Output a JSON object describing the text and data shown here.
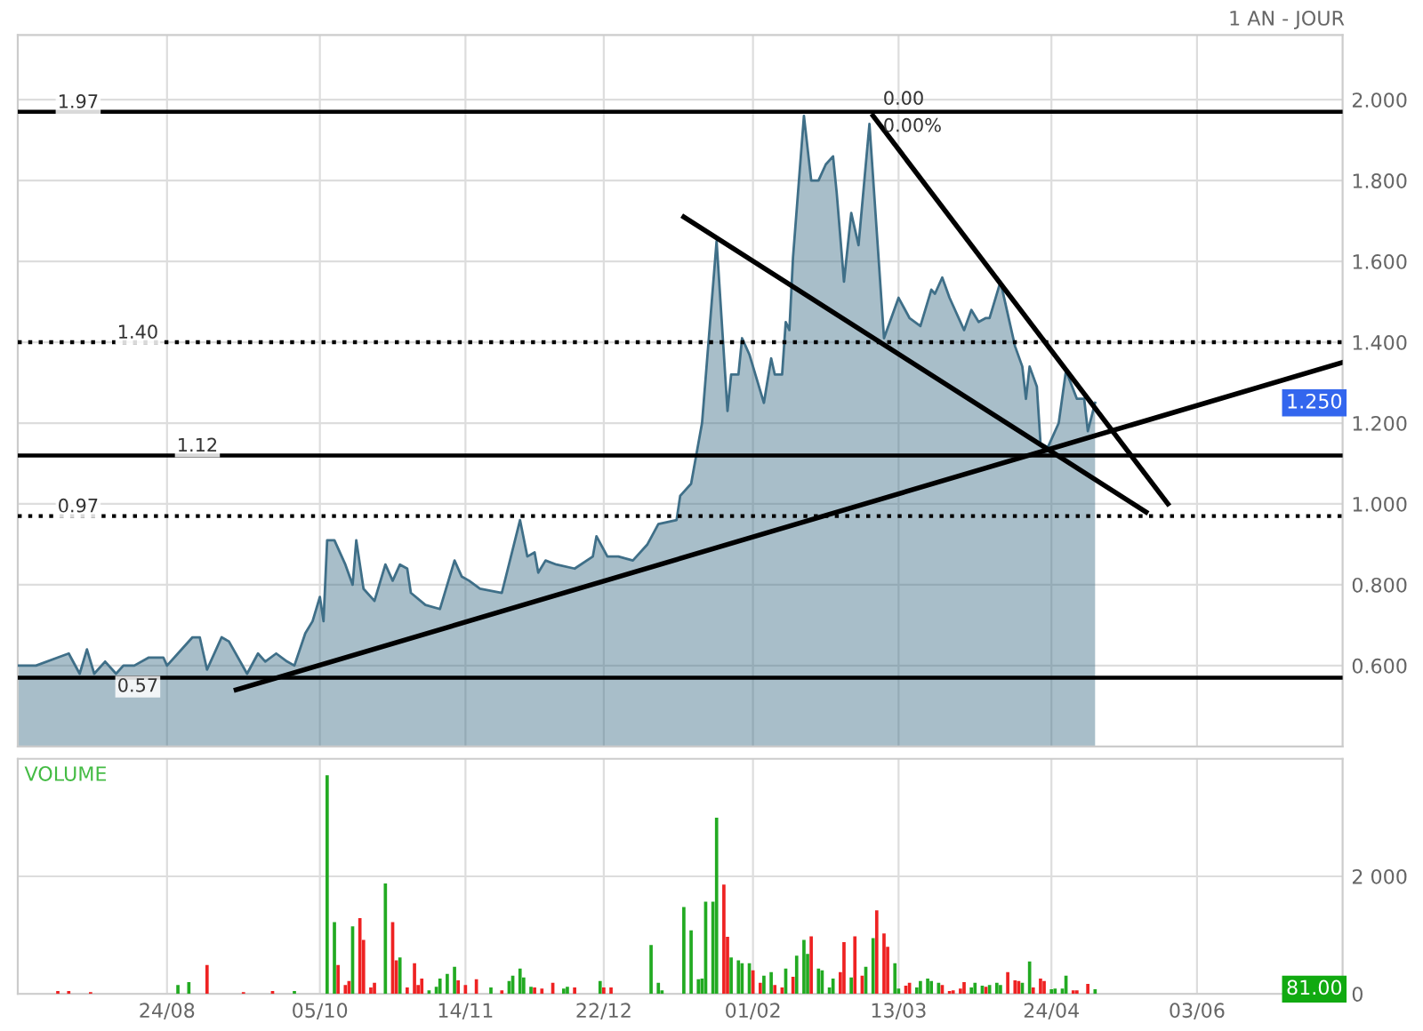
{
  "chart_data": [
    {
      "type": "area",
      "subtitle": "1 AN - JOUR",
      "series": [
        {
          "type": "area",
          "color": "#3f6f88",
          "x": [
            "2001-07-14",
            "2001-07-19",
            "2001-07-25",
            "2001-07-28",
            "2001-07-31",
            "2001-08-02",
            "2001-08-04",
            "2001-08-07",
            "2001-08-10",
            "2001-08-12",
            "2001-08-15",
            "2001-08-19",
            "2001-08-23",
            "2001-08-24",
            "2001-08-27",
            "2001-08-31",
            "2001-09-02",
            "2001-09-04",
            "2001-09-08",
            "2001-09-10",
            "2001-09-15",
            "2001-09-18",
            "2001-09-20",
            "2001-09-23",
            "2001-09-26",
            "2001-09-28",
            "2001-10-01",
            "2001-10-03",
            "2001-10-05",
            "2001-10-06",
            "2001-10-07",
            "2001-10-09",
            "2001-10-12",
            "2001-10-14",
            "2001-10-15",
            "2001-10-17",
            "2001-10-20",
            "2001-10-23",
            "2001-10-25",
            "2001-10-27",
            "2001-10-29",
            "2001-10-30",
            "2001-11-03",
            "2001-11-07",
            "2001-11-11",
            "2001-11-13",
            "2001-11-15",
            "2001-11-18",
            "2001-11-24",
            "2001-11-29",
            "2001-12-01",
            "2001-12-03",
            "2001-12-04",
            "2001-12-06",
            "2001-12-09",
            "2001-12-14",
            "2001-12-19",
            "2001-12-20",
            "2001-12-23",
            "2001-12-26",
            "2001-12-30",
            "2002-01-03",
            "2002-01-06",
            "2002-01-11",
            "2002-01-12",
            "2002-01-15",
            "2002-01-18",
            "2002-01-22",
            "2002-01-25",
            "2002-01-26",
            "2002-01-28",
            "2002-01-29",
            "2002-01-31",
            "2002-02-04",
            "2002-02-06",
            "2002-02-07",
            "2002-02-09",
            "2002-02-10",
            "2002-02-11",
            "2002-02-12",
            "2002-02-15",
            "2002-02-17",
            "2002-02-19",
            "2002-02-21",
            "2002-02-23",
            "2002-02-24",
            "2002-02-26",
            "2002-02-28",
            "2002-03-02",
            "2002-03-05",
            "2002-03-09",
            "2002-03-13",
            "2002-03-16",
            "2002-03-19",
            "2002-03-22",
            "2002-03-23",
            "2002-03-25",
            "2002-03-27",
            "2002-03-31",
            "2002-04-02",
            "2002-04-04",
            "2002-04-06",
            "2002-04-07",
            "2002-04-10",
            "2002-04-14",
            "2002-04-16",
            "2002-04-17",
            "2002-04-18",
            "2002-04-20",
            "2002-04-21",
            "2002-04-23",
            "2002-04-26",
            "2002-04-28",
            "2002-05-01",
            "2002-05-03",
            "2002-05-04",
            "2002-05-06"
          ],
          "values": [
            0.6,
            0.6,
            0.62,
            0.63,
            0.58,
            0.64,
            0.58,
            0.61,
            0.58,
            0.6,
            0.6,
            0.62,
            0.62,
            0.6,
            0.63,
            0.67,
            0.67,
            0.59,
            0.67,
            0.66,
            0.58,
            0.63,
            0.61,
            0.63,
            0.61,
            0.6,
            0.68,
            0.71,
            0.77,
            0.71,
            0.91,
            0.91,
            0.85,
            0.8,
            0.91,
            0.79,
            0.76,
            0.85,
            0.81,
            0.85,
            0.84,
            0.78,
            0.75,
            0.74,
            0.86,
            0.82,
            0.81,
            0.79,
            0.78,
            0.96,
            0.87,
            0.88,
            0.83,
            0.86,
            0.85,
            0.84,
            0.87,
            0.92,
            0.87,
            0.87,
            0.86,
            0.9,
            0.95,
            0.96,
            1.02,
            1.05,
            1.2,
            1.65,
            1.23,
            1.32,
            1.32,
            1.41,
            1.37,
            1.25,
            1.36,
            1.32,
            1.32,
            1.45,
            1.43,
            1.61,
            1.96,
            1.8,
            1.8,
            1.84,
            1.86,
            1.77,
            1.55,
            1.72,
            1.64,
            1.94,
            1.41,
            1.51,
            1.46,
            1.44,
            1.53,
            1.52,
            1.56,
            1.51,
            1.43,
            1.48,
            1.45,
            1.46,
            1.46,
            1.55,
            1.39,
            1.34,
            1.26,
            1.34,
            1.29,
            1.15,
            1.14,
            1.2,
            1.33,
            1.26,
            1.26,
            1.18,
            1.25
          ]
        },
        {
          "type": "line",
          "color": "#000000",
          "x": [
            "2001-09-12",
            "2002-07-13"
          ],
          "values": [
            0.54,
            1.35
          ]
        },
        {
          "type": "line",
          "color": "#000000",
          "x": [
            "2002-01-13",
            "2002-05-20"
          ],
          "values": [
            1.71,
            0.98
          ]
        },
        {
          "type": "line",
          "color": "#000000",
          "x": [
            "2002-03-06",
            "2002-05-26"
          ],
          "values": [
            1.96,
            1.0
          ]
        }
      ],
      "xlim": [
        "2001-07-14",
        "2002-07-13"
      ],
      "xticks": [
        {
          "value": "2001-08-24",
          "label": null
        },
        {
          "value": "2001-10-05",
          "label": null
        },
        {
          "value": "2001-11-14",
          "label": null
        },
        {
          "value": "2001-12-22",
          "label": null
        },
        {
          "value": "2002-02-01",
          "label": null
        },
        {
          "value": "2002-03-13",
          "label": null
        },
        {
          "value": "2002-04-24",
          "label": null
        },
        {
          "value": "2002-06-03",
          "label": null
        }
      ],
      "ylim": [
        0.4,
        2.16
      ],
      "yticks": [
        {
          "value": 0.6,
          "label": "0.600"
        },
        {
          "value": 0.8,
          "label": "0.800"
        },
        {
          "value": 1.0,
          "label": "1.000"
        },
        {
          "value": 1.2,
          "label": "1.200"
        },
        {
          "value": 1.4,
          "label": "1.400"
        },
        {
          "value": 1.6,
          "label": "1.600"
        },
        {
          "value": 1.8,
          "label": "1.800"
        },
        {
          "value": 2.0,
          "label": "2.000"
        }
      ],
      "tick_labels": "y",
      "grid": true,
      "ref_lines": [
        {
          "axis": "y",
          "value": 1.97,
          "label": "1.97",
          "line_style": "solid"
        },
        {
          "axis": "y",
          "value": 1.4,
          "label": "1.40",
          "line_style": "dotted"
        },
        {
          "axis": "y",
          "value": 1.12,
          "label": "1.12",
          "line_style": "solid"
        },
        {
          "axis": "y",
          "value": 0.97,
          "label": "0.97",
          "line_style": "dotted"
        },
        {
          "axis": "y",
          "value": 0.57,
          "label": "0.57",
          "line_style": "solid"
        }
      ],
      "annotations": [
        {
          "text": "0.00",
          "x": "2002-03-06",
          "y": 1.96
        },
        {
          "text": "0.00%",
          "x": "2002-03-06",
          "y": 1.96
        },
        "1.250"
      ]
    },
    {
      "type": "bar",
      "title": "VOLUME",
      "series": [
        {
          "color": "#22aa22",
          "x": [
            "2001-08-27",
            "2001-08-30",
            "2001-09-28",
            "2001-10-07",
            "2001-10-09",
            "2001-10-14",
            "2001-10-23",
            "2001-10-27",
            "2001-11-04",
            "2001-11-06",
            "2001-11-07",
            "2001-11-09",
            "2001-11-11",
            "2001-11-21",
            "2001-11-26",
            "2001-11-27",
            "2001-11-29",
            "2001-11-30",
            "2001-12-02",
            "2001-12-11",
            "2001-12-12",
            "2001-12-21",
            "2002-01-04",
            "2002-01-06",
            "2002-01-07",
            "2002-01-13",
            "2002-01-15",
            "2002-01-17",
            "2002-01-18",
            "2002-01-19",
            "2002-01-21",
            "2002-01-22",
            "2002-01-26",
            "2002-01-28",
            "2002-01-29",
            "2002-01-31",
            "2002-02-04",
            "2002-02-06",
            "2002-02-10",
            "2002-02-13",
            "2002-02-15",
            "2002-02-16",
            "2002-02-19",
            "2002-02-20",
            "2002-02-22",
            "2002-02-23",
            "2002-02-28",
            "2002-03-04",
            "2002-03-06",
            "2002-03-12",
            "2002-03-13",
            "2002-03-18",
            "2002-03-19",
            "2002-03-21",
            "2002-03-22",
            "2002-03-24",
            "2002-04-02",
            "2002-04-03",
            "2002-04-05",
            "2002-04-07",
            "2002-04-09",
            "2002-04-10",
            "2002-04-16",
            "2002-04-18",
            "2002-04-24",
            "2002-04-25",
            "2002-04-27",
            "2002-04-28",
            "2002-05-06"
          ],
          "values": [
            150,
            200,
            50,
            3720,
            1220,
            1150,
            1880,
            620,
            60,
            120,
            260,
            340,
            460,
            110,
            220,
            310,
            430,
            280,
            120,
            90,
            120,
            220,
            830,
            190,
            60,
            1480,
            1080,
            250,
            260,
            1570,
            1570,
            3000,
            620,
            570,
            520,
            520,
            310,
            370,
            430,
            650,
            920,
            680,
            430,
            400,
            110,
            260,
            280,
            460,
            950,
            520,
            90,
            110,
            220,
            260,
            220,
            190,
            110,
            190,
            140,
            150,
            190,
            150,
            190,
            550,
            80,
            90,
            90,
            310,
            81
          ]
        },
        {
          "color": "#ee2222",
          "x": [
            "2001-07-25",
            "2001-07-28",
            "2001-08-03",
            "2001-09-04",
            "2001-09-14",
            "2001-09-22",
            "2001-10-10",
            "2001-10-12",
            "2001-10-13",
            "2001-10-16",
            "2001-10-17",
            "2001-10-19",
            "2001-10-20",
            "2001-10-25",
            "2001-10-26",
            "2001-10-29",
            "2001-10-31",
            "2001-11-01",
            "2001-11-02",
            "2001-11-12",
            "2001-11-14",
            "2001-11-17",
            "2001-11-24",
            "2001-12-03",
            "2001-12-05",
            "2001-12-08",
            "2001-12-14",
            "2001-12-22",
            "2001-12-24",
            "2002-01-24",
            "2002-01-25",
            "2002-02-01",
            "2002-02-03",
            "2002-02-07",
            "2002-02-09",
            "2002-02-12",
            "2002-02-17",
            "2002-02-25",
            "2002-02-26",
            "2002-03-01",
            "2002-03-03",
            "2002-03-07",
            "2002-03-09",
            "2002-03-10",
            "2002-03-15",
            "2002-03-16",
            "2002-03-25",
            "2002-03-27",
            "2002-03-28",
            "2002-03-30",
            "2002-03-31",
            "2002-04-06",
            "2002-04-12",
            "2002-04-14",
            "2002-04-15",
            "2002-04-19",
            "2002-04-21",
            "2002-04-22",
            "2002-04-30",
            "2002-05-01",
            "2002-05-04"
          ],
          "values": [
            50,
            50,
            30,
            490,
            30,
            50,
            490,
            150,
            220,
            1290,
            920,
            110,
            190,
            1220,
            570,
            110,
            520,
            150,
            260,
            230,
            150,
            250,
            60,
            110,
            90,
            190,
            110,
            110,
            110,
            1860,
            970,
            400,
            190,
            150,
            110,
            290,
            980,
            370,
            880,
            980,
            310,
            1420,
            1030,
            800,
            140,
            190,
            150,
            50,
            60,
            90,
            200,
            120,
            370,
            230,
            220,
            110,
            260,
            220,
            60,
            60,
            170
          ]
        }
      ],
      "xlim": [
        "2001-07-14",
        "2002-07-13"
      ],
      "xticks": [
        {
          "value": "2001-08-24",
          "label": "24/08"
        },
        {
          "value": "2001-10-05",
          "label": "05/10"
        },
        {
          "value": "2001-11-14",
          "label": "14/11"
        },
        {
          "value": "2001-12-22",
          "label": "22/12"
        },
        {
          "value": "2002-02-01",
          "label": "01/02"
        },
        {
          "value": "2002-03-13",
          "label": "13/03"
        },
        {
          "value": "2002-04-24",
          "label": "24/04"
        },
        {
          "value": "2002-06-03",
          "label": "03/06"
        }
      ],
      "ylim": [
        0,
        4000
      ],
      "yticks": [
        {
          "value": 0,
          "label": "0"
        },
        {
          "value": 2000,
          "label": "2 000"
        }
      ],
      "grid": true,
      "annotations": [
        "81.00"
      ]
    }
  ]
}
